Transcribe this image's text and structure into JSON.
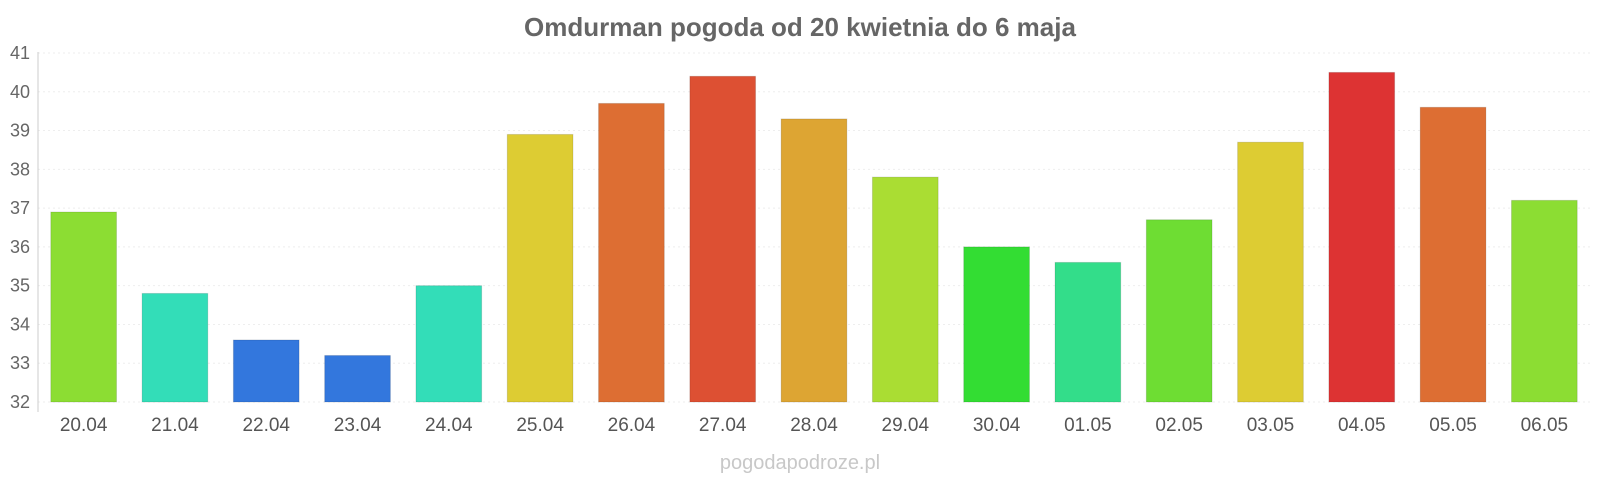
{
  "chart_data": {
    "type": "bar",
    "title": "Omdurman pogoda od 20 kwietnia do 6 maja",
    "xlabel": "",
    "ylabel": "",
    "ylim": [
      32,
      41
    ],
    "yticks": [
      32,
      33,
      34,
      35,
      36,
      37,
      38,
      39,
      40,
      41
    ],
    "grid": true,
    "legend": "none",
    "categories": [
      "20.04",
      "21.04",
      "22.04",
      "23.04",
      "24.04",
      "25.04",
      "26.04",
      "27.04",
      "28.04",
      "29.04",
      "30.04",
      "01.05",
      "02.05",
      "03.05",
      "04.05",
      "05.05",
      "06.05"
    ],
    "values": [
      36.9,
      34.8,
      33.6,
      33.2,
      35.0,
      38.9,
      39.7,
      40.4,
      39.3,
      37.8,
      36.0,
      35.6,
      36.7,
      38.7,
      40.5,
      39.6,
      37.2
    ],
    "colors": [
      "#8cdd33",
      "#33ddb8",
      "#3377dd",
      "#3377dd",
      "#33ddb8",
      "#ddcc33",
      "#dd6e33",
      "#dd5033",
      "#dda533",
      "#aadd33",
      "#33dd33",
      "#33dd8a",
      "#6edd33",
      "#ddcc33",
      "#dd3333",
      "#dd6e33",
      "#8cdd33"
    ],
    "watermark": "pogodapodroze.pl"
  }
}
